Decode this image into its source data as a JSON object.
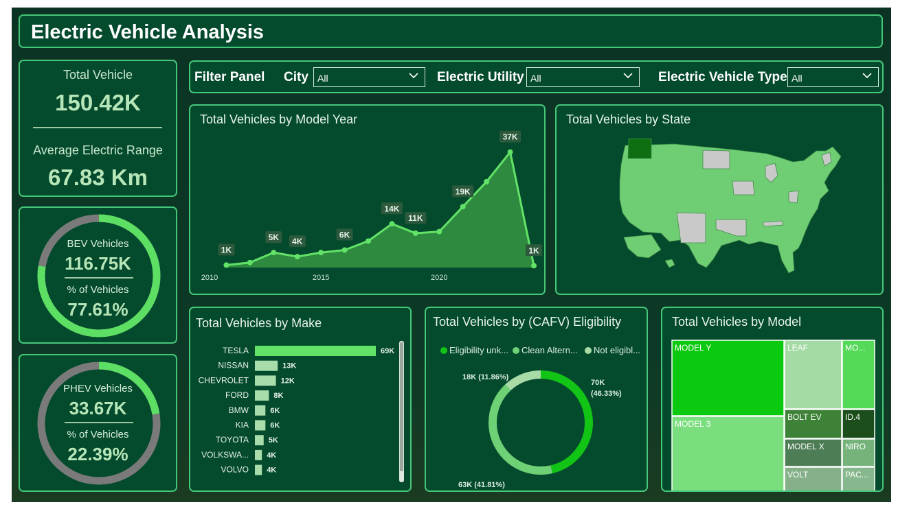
{
  "header": {
    "title": "Electric Vehicle Analysis"
  },
  "kpi": {
    "total_label": "Total Vehicle",
    "total_value": "150.42K",
    "range_label": "Average Electric Range",
    "range_value": "67.83 Km"
  },
  "bev": {
    "label": "BEV Vehicles",
    "value": "116.75K",
    "pct_label": "% of Vehicles",
    "pct_value": "77.61%",
    "fraction": 0.7761
  },
  "phev": {
    "label": "PHEV Vehicles",
    "value": "33.67K",
    "pct_label": "% of Vehicles",
    "pct_value": "22.39%",
    "fraction": 0.2239
  },
  "filter": {
    "title": "Filter Panel",
    "city_label": "City",
    "city_value": "All",
    "utility_label": "Electric Utility",
    "utility_value": "All",
    "type_label": "Electric Vehicle Type",
    "type_value": "All"
  },
  "titles": {
    "year": "Total Vehicles by Model Year",
    "state": "Total Vehicles by State",
    "make": "Total Vehicles by Make",
    "cafv": "Total Vehicles by (CAFV) Eligibility",
    "model": "Total Vehicles by Model"
  },
  "colors": {
    "accent": "#5cdf62",
    "bev_ring": "#5cdf62",
    "phev_ring": "#7a7a7a",
    "map_fill": "#6fce74",
    "map_grey": "#c9c9c9",
    "map_wa": "#0d6e12"
  },
  "chart_data": [
    {
      "type": "area",
      "title": "Total Vehicles by Model Year",
      "x": [
        2011,
        2012,
        2013,
        2014,
        2015,
        2016,
        2017,
        2018,
        2019,
        2020,
        2021,
        2022,
        2023,
        2024
      ],
      "values": [
        0.8,
        1.6,
        4.8,
        3.5,
        4.8,
        5.6,
        8.5,
        14,
        11,
        11.5,
        19.5,
        27.5,
        37,
        0.6
      ],
      "labels": [
        "1K",
        "",
        "5K",
        "4K",
        "",
        "6K",
        "",
        "14K",
        "11K",
        "",
        "19K",
        "",
        "37K",
        "1K"
      ],
      "x_ticks": [
        2010,
        2015,
        2020
      ],
      "xlim": [
        2010,
        2024
      ],
      "ylim": [
        0,
        40
      ]
    },
    {
      "type": "bar",
      "title": "Total Vehicles by Make",
      "categories": [
        "TESLA",
        "NISSAN",
        "CHEVROLET",
        "FORD",
        "BMW",
        "KIA",
        "TOYOTA",
        "VOLKSWA...",
        "VOLVO"
      ],
      "values": [
        69,
        13,
        12,
        8,
        6,
        6,
        5,
        4,
        4
      ],
      "data_labels": [
        "69K",
        "13K",
        "12K",
        "8K",
        "6K",
        "6K",
        "5K",
        "4K",
        "4K"
      ]
    },
    {
      "type": "pie",
      "title": "Total Vehicles by (CAFV) Eligibility",
      "series": [
        {
          "name": "Eligibility unk...",
          "value": 70,
          "label": "70K (46.33%)",
          "color": "#12c415"
        },
        {
          "name": "Clean Altern...",
          "value": 63,
          "label": "63K (41.81%)",
          "color": "#6fd176"
        },
        {
          "name": "Not eligibl...",
          "value": 18,
          "label": "18K (11.86%)",
          "color": "#a8dba6"
        }
      ]
    },
    {
      "type": "treemap",
      "title": "Total Vehicles by Model",
      "items": [
        {
          "label": "MODEL Y",
          "color": "#0bc90e"
        },
        {
          "label": "MODEL 3",
          "color": "#7bde7e"
        },
        {
          "label": "LEAF",
          "color": "#a4dba4"
        },
        {
          "label": "MO...",
          "color": "#54d959"
        },
        {
          "label": "BOLT EV",
          "color": "#3e8237"
        },
        {
          "label": "ID.4",
          "color": "#1b4e1b"
        },
        {
          "label": "MODEL X",
          "color": "#4d7d55"
        },
        {
          "label": "NIRO",
          "color": "#76b37b"
        },
        {
          "label": "VOLT",
          "color": "#86b08a"
        },
        {
          "label": "PAC...",
          "color": "#87b78c"
        }
      ]
    }
  ]
}
